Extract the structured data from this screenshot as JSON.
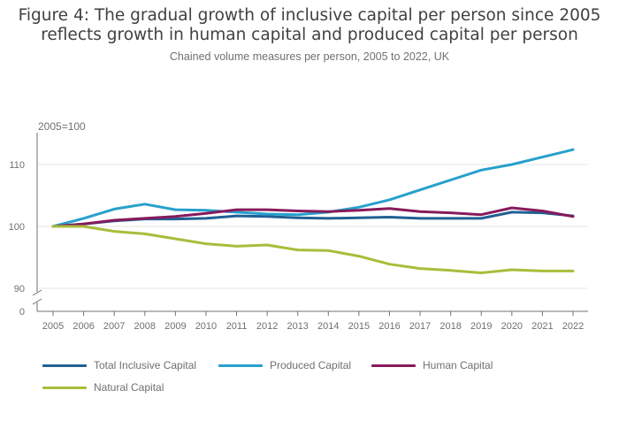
{
  "title_line1": "Figure 4: The gradual growth of inclusive capital per person since 2005",
  "title_line2": "reflects growth in human capital and produced capital per person",
  "subtitle": "Chained volume measures per person, 2005 to 2022, UK",
  "chart_data": {
    "type": "line",
    "ylabel": "2005=100",
    "xlabel": "",
    "x": [
      "2005",
      "2006",
      "2007",
      "2008",
      "2009",
      "2010",
      "2011",
      "2012",
      "2013",
      "2014",
      "2015",
      "2016",
      "2017",
      "2018",
      "2019",
      "2020",
      "2021",
      "2022"
    ],
    "ylim": [
      89,
      115
    ],
    "y_ticks": [
      90,
      100,
      110
    ],
    "y_break_label": "0",
    "grid": true,
    "legend_position": "bottom",
    "series": [
      {
        "name": "Total Inclusive Capital",
        "color": "#206095",
        "values": [
          100,
          100.4,
          100.9,
          101.2,
          101.2,
          101.3,
          101.7,
          101.6,
          101.4,
          101.3,
          101.4,
          101.5,
          101.3,
          101.3,
          101.3,
          102.3,
          102.2,
          101.7
        ]
      },
      {
        "name": "Produced Capital",
        "color": "#27A0CC",
        "values": [
          100,
          101.3,
          102.8,
          103.6,
          102.7,
          102.6,
          102.3,
          102.0,
          101.9,
          102.3,
          103.1,
          104.3,
          105.9,
          107.5,
          109.1,
          110.0,
          111.2,
          112.4
        ]
      },
      {
        "name": "Human Capital",
        "color": "#871A5B",
        "values": [
          100,
          100.4,
          101.0,
          101.3,
          101.6,
          102.1,
          102.7,
          102.7,
          102.5,
          102.4,
          102.6,
          102.9,
          102.4,
          102.2,
          101.9,
          103.0,
          102.5,
          101.6
        ]
      },
      {
        "name": "Natural Capital",
        "color": "#A8BD3A",
        "values": [
          100,
          100.0,
          99.2,
          98.8,
          98.0,
          97.2,
          96.8,
          97.0,
          96.2,
          96.1,
          95.2,
          93.9,
          93.2,
          92.9,
          92.5,
          93.0,
          92.8,
          92.8
        ]
      }
    ]
  }
}
